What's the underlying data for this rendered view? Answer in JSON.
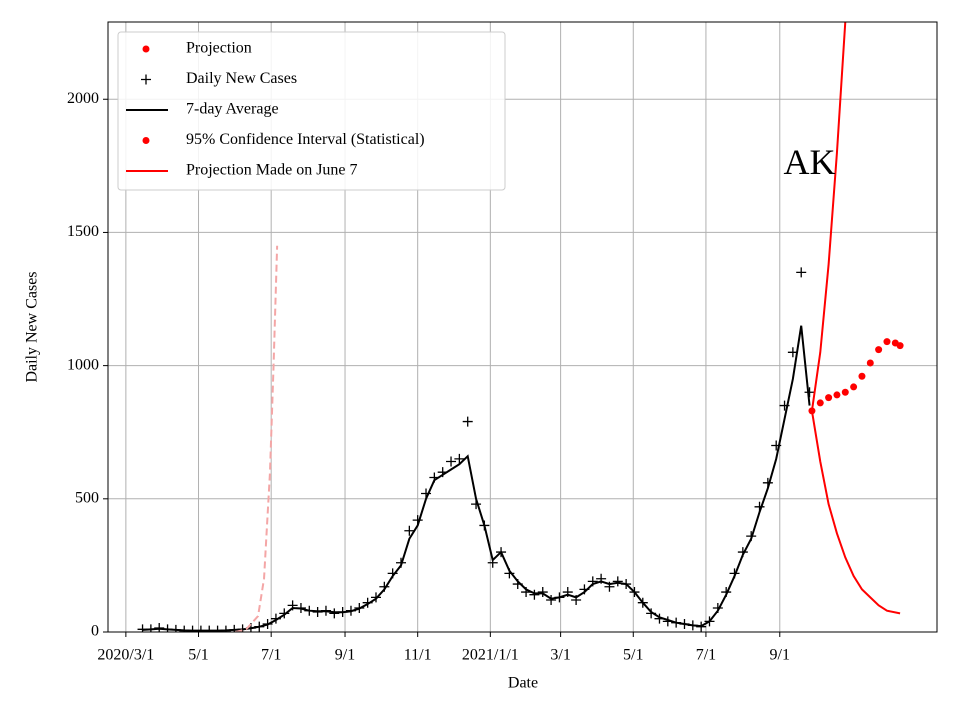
{
  "chart_data": {
    "type": "line",
    "xlabel": "Date",
    "ylabel": "Daily New Cases",
    "annotation": {
      "text": "AK",
      "x": "2021-09-26",
      "y": 1750
    },
    "xlim": [
      "2020-02-15",
      "2022-01-11"
    ],
    "ylim": [
      0,
      2290
    ],
    "xticks": [
      {
        "value": "2020-03-01",
        "label": "2020/3/1"
      },
      {
        "value": "2020-05-01",
        "label": "5/1"
      },
      {
        "value": "2020-07-01",
        "label": "7/1"
      },
      {
        "value": "2020-09-01",
        "label": "9/1"
      },
      {
        "value": "2020-11-01",
        "label": "11/1"
      },
      {
        "value": "2021-01-01",
        "label": "2021/1/1"
      },
      {
        "value": "2021-03-01",
        "label": "3/1"
      },
      {
        "value": "2021-05-01",
        "label": "5/1"
      },
      {
        "value": "2021-07-01",
        "label": "7/1"
      },
      {
        "value": "2021-09-01",
        "label": "9/1"
      }
    ],
    "yticks": [
      0,
      500,
      1000,
      1500,
      2000
    ],
    "grid": true,
    "legend": "upper left",
    "series": [
      {
        "name": "Projection",
        "color": "#ff0000",
        "style": "dots",
        "x": [
          "2021-09-28",
          "2021-10-05",
          "2021-10-12",
          "2021-10-19",
          "2021-10-26",
          "2021-11-02",
          "2021-11-09",
          "2021-11-16",
          "2021-11-23",
          "2021-11-30",
          "2021-12-07",
          "2021-12-11"
        ],
        "values": [
          830,
          860,
          880,
          890,
          900,
          920,
          960,
          1010,
          1060,
          1090,
          1085,
          1075
        ]
      },
      {
        "name": "Daily New Cases",
        "color": "#000000",
        "style": "plus",
        "x": [
          "2020-03-15",
          "2020-03-22",
          "2020-03-29",
          "2020-04-05",
          "2020-04-12",
          "2020-04-19",
          "2020-04-26",
          "2020-05-03",
          "2020-05-10",
          "2020-05-17",
          "2020-05-24",
          "2020-05-31",
          "2020-06-07",
          "2020-06-14",
          "2020-06-21",
          "2020-06-28",
          "2020-07-05",
          "2020-07-12",
          "2020-07-19",
          "2020-07-26",
          "2020-08-02",
          "2020-08-09",
          "2020-08-16",
          "2020-08-23",
          "2020-08-30",
          "2020-09-06",
          "2020-09-13",
          "2020-09-20",
          "2020-09-27",
          "2020-10-04",
          "2020-10-11",
          "2020-10-18",
          "2020-10-25",
          "2020-11-01",
          "2020-11-08",
          "2020-11-15",
          "2020-11-22",
          "2020-11-29",
          "2020-12-06",
          "2020-12-13",
          "2020-12-20",
          "2020-12-27",
          "2021-01-03",
          "2021-01-10",
          "2021-01-17",
          "2021-01-24",
          "2021-01-31",
          "2021-02-07",
          "2021-02-14",
          "2021-02-21",
          "2021-02-28",
          "2021-03-07",
          "2021-03-14",
          "2021-03-21",
          "2021-03-28",
          "2021-04-04",
          "2021-04-11",
          "2021-04-18",
          "2021-04-25",
          "2021-05-02",
          "2021-05-09",
          "2021-05-16",
          "2021-05-23",
          "2021-05-30",
          "2021-06-06",
          "2021-06-13",
          "2021-06-20",
          "2021-06-27",
          "2021-07-04",
          "2021-07-11",
          "2021-07-18",
          "2021-07-25",
          "2021-08-01",
          "2021-08-08",
          "2021-08-15",
          "2021-08-22",
          "2021-08-29",
          "2021-09-05",
          "2021-09-12",
          "2021-09-19",
          "2021-09-26"
        ],
        "values": [
          10,
          10,
          15,
          10,
          8,
          5,
          5,
          5,
          5,
          5,
          5,
          8,
          10,
          15,
          20,
          30,
          50,
          70,
          100,
          90,
          80,
          75,
          80,
          70,
          75,
          80,
          90,
          110,
          130,
          170,
          220,
          260,
          380,
          420,
          520,
          580,
          600,
          640,
          650,
          790,
          480,
          400,
          260,
          300,
          220,
          180,
          150,
          140,
          150,
          120,
          130,
          150,
          120,
          160,
          190,
          200,
          170,
          190,
          180,
          150,
          110,
          70,
          50,
          40,
          35,
          30,
          25,
          20,
          40,
          90,
          150,
          220,
          300,
          360,
          470,
          560,
          700,
          850,
          1050,
          1350,
          900
        ]
      },
      {
        "name": "7-day Average",
        "color": "#000000",
        "style": "line",
        "x": [
          "2020-03-15",
          "2020-03-22",
          "2020-03-29",
          "2020-04-05",
          "2020-04-12",
          "2020-04-19",
          "2020-04-26",
          "2020-05-03",
          "2020-05-10",
          "2020-05-17",
          "2020-05-24",
          "2020-05-31",
          "2020-06-07",
          "2020-06-14",
          "2020-06-21",
          "2020-06-28",
          "2020-07-05",
          "2020-07-12",
          "2020-07-19",
          "2020-07-26",
          "2020-08-02",
          "2020-08-09",
          "2020-08-16",
          "2020-08-23",
          "2020-08-30",
          "2020-09-06",
          "2020-09-13",
          "2020-09-20",
          "2020-09-27",
          "2020-10-04",
          "2020-10-11",
          "2020-10-18",
          "2020-10-25",
          "2020-11-01",
          "2020-11-08",
          "2020-11-15",
          "2020-11-22",
          "2020-11-29",
          "2020-12-06",
          "2020-12-13",
          "2020-12-20",
          "2020-12-27",
          "2021-01-03",
          "2021-01-10",
          "2021-01-17",
          "2021-01-24",
          "2021-01-31",
          "2021-02-07",
          "2021-02-14",
          "2021-02-21",
          "2021-02-28",
          "2021-03-07",
          "2021-03-14",
          "2021-03-21",
          "2021-03-28",
          "2021-04-04",
          "2021-04-11",
          "2021-04-18",
          "2021-04-25",
          "2021-05-02",
          "2021-05-09",
          "2021-05-16",
          "2021-05-23",
          "2021-05-30",
          "2021-06-06",
          "2021-06-13",
          "2021-06-20",
          "2021-06-27",
          "2021-07-04",
          "2021-07-11",
          "2021-07-18",
          "2021-07-25",
          "2021-08-01",
          "2021-08-08",
          "2021-08-15",
          "2021-08-22",
          "2021-08-29",
          "2021-09-05",
          "2021-09-12",
          "2021-09-19",
          "2021-09-26"
        ],
        "values": [
          8,
          10,
          12,
          10,
          8,
          6,
          5,
          5,
          5,
          5,
          6,
          8,
          10,
          14,
          20,
          28,
          45,
          65,
          90,
          88,
          80,
          78,
          78,
          74,
          74,
          78,
          88,
          105,
          125,
          160,
          210,
          250,
          350,
          400,
          500,
          570,
          590,
          610,
          630,
          660,
          500,
          400,
          270,
          300,
          230,
          190,
          160,
          145,
          145,
          125,
          130,
          140,
          130,
          150,
          180,
          190,
          180,
          185,
          180,
          150,
          110,
          75,
          55,
          45,
          35,
          30,
          25,
          22,
          40,
          80,
          140,
          210,
          290,
          350,
          450,
          540,
          650,
          800,
          950,
          1150,
          850
        ]
      },
      {
        "name": "95% Confidence Interval (Statistical)",
        "color": "#ff0000",
        "style": "line",
        "legend_marker": "dots",
        "upper": {
          "x": [
            "2021-09-28",
            "2021-10-05",
            "2021-10-12",
            "2021-10-19",
            "2021-10-26"
          ],
          "values": [
            830,
            1050,
            1380,
            1800,
            2290
          ]
        },
        "lower": {
          "x": [
            "2021-09-28",
            "2021-10-05",
            "2021-10-12",
            "2021-10-19",
            "2021-10-26",
            "2021-11-02",
            "2021-11-09",
            "2021-11-16",
            "2021-11-23",
            "2021-11-30",
            "2021-12-11"
          ],
          "values": [
            830,
            640,
            480,
            370,
            280,
            210,
            160,
            130,
            100,
            80,
            70
          ]
        }
      },
      {
        "name": "Projection Made on June 7",
        "color": "#f4a6a6",
        "style": "dashed",
        "legend_color": "#ff0000",
        "x": [
          "2020-06-01",
          "2020-06-10",
          "2020-06-20",
          "2020-06-25",
          "2020-06-30",
          "2020-07-03",
          "2020-07-06"
        ],
        "values": [
          0,
          10,
          60,
          200,
          600,
          1000,
          1450
        ]
      }
    ]
  }
}
